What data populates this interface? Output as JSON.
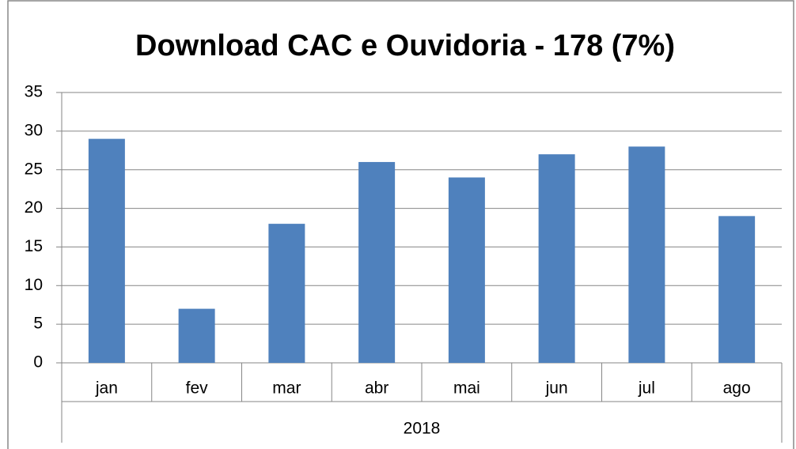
{
  "chart_data": {
    "type": "bar",
    "title": "Download CAC e Ouvidoria - 178 (7%)",
    "categories": [
      "jan",
      "fev",
      "mar",
      "abr",
      "mai",
      "jun",
      "jul",
      "ago"
    ],
    "x_group": "2018",
    "values": [
      29,
      7,
      18,
      26,
      24,
      27,
      28,
      19
    ],
    "color": "#4f81bd",
    "ylim": [
      0,
      35
    ],
    "yticks": [
      0,
      5,
      10,
      15,
      20,
      25,
      30,
      35
    ],
    "grid": true
  }
}
